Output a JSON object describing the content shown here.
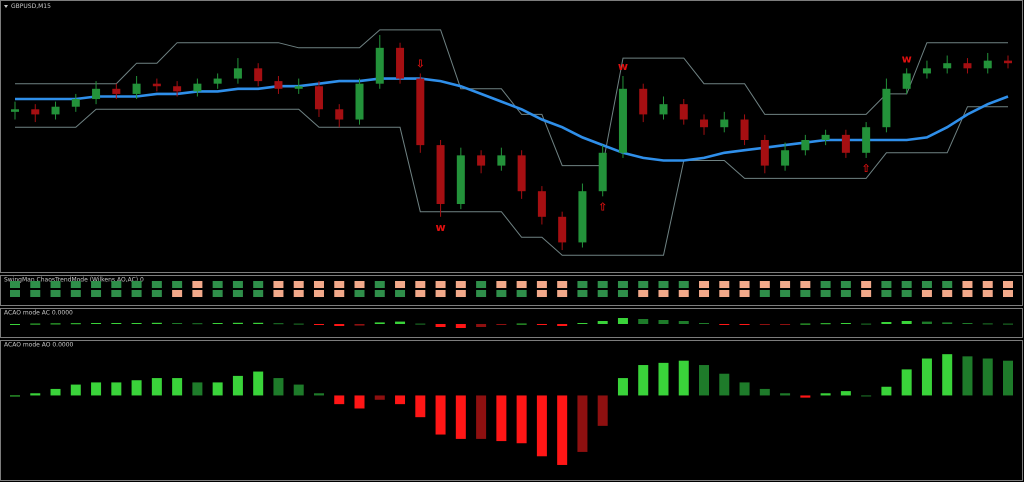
{
  "chart_data": [
    {
      "type": "candlestick",
      "title": "GBPUSD,M15",
      "open": [
        61,
        62,
        60,
        63,
        66,
        70,
        68,
        72,
        71,
        69,
        72,
        74,
        78,
        73,
        70,
        71,
        62,
        58,
        72,
        86,
        74,
        48,
        25,
        44,
        40,
        44,
        30,
        20,
        10,
        30,
        45,
        70,
        60,
        64,
        58,
        55,
        58,
        50,
        40,
        46,
        50,
        52,
        45,
        55,
        70,
        76,
        78,
        80,
        78,
        81
      ],
      "high": [
        65,
        64,
        65,
        68,
        73,
        72,
        75,
        74,
        73,
        74,
        76,
        82,
        80,
        75,
        74,
        73,
        64,
        74,
        91,
        88,
        76,
        50,
        47,
        46,
        47,
        46,
        32,
        22,
        33,
        48,
        75,
        72,
        67,
        66,
        60,
        61,
        60,
        52,
        49,
        52,
        54,
        54,
        57,
        74,
        78,
        81,
        83,
        82,
        84,
        83
      ],
      "low": [
        58,
        57,
        58,
        61,
        64,
        66,
        66,
        69,
        67,
        67,
        70,
        72,
        71,
        68,
        68,
        59,
        55,
        56,
        70,
        72,
        45,
        20,
        23,
        37,
        38,
        27,
        17,
        7,
        8,
        28,
        43,
        57,
        58,
        56,
        52,
        53,
        48,
        37,
        38,
        44,
        48,
        43,
        43,
        53,
        68,
        74,
        76,
        76,
        76,
        78
      ],
      "close": [
        62,
        60,
        63,
        66,
        70,
        68,
        72,
        71,
        69,
        72,
        74,
        78,
        73,
        70,
        71,
        62,
        58,
        72,
        86,
        74,
        48,
        25,
        44,
        40,
        44,
        30,
        20,
        10,
        30,
        45,
        70,
        60,
        64,
        58,
        55,
        58,
        50,
        40,
        46,
        50,
        52,
        45,
        55,
        70,
        76,
        78,
        80,
        78,
        81,
        80
      ],
      "up_color": "#23923a",
      "down_color": "#a50f12",
      "lines": [
        {
          "color": "#6f8283",
          "values": [
            72,
            72,
            72,
            72,
            72,
            72,
            80,
            80,
            88,
            88,
            88,
            88,
            88,
            88,
            86,
            86,
            86,
            86,
            93,
            93,
            93,
            93,
            70,
            70,
            70,
            60,
            60,
            40,
            40,
            40,
            82,
            82,
            82,
            82,
            72,
            72,
            72,
            60,
            60,
            60,
            60,
            60,
            60,
            68,
            68,
            88,
            88,
            88,
            88,
            88
          ]
        },
        {
          "color": "#6f8283",
          "values": [
            55,
            55,
            55,
            55,
            62,
            62,
            62,
            62,
            62,
            62,
            62,
            62,
            62,
            62,
            62,
            55,
            55,
            55,
            55,
            55,
            22,
            22,
            22,
            22,
            22,
            12,
            12,
            5,
            5,
            5,
            5,
            5,
            5,
            42,
            42,
            42,
            35,
            35,
            35,
            35,
            35,
            35,
            35,
            45,
            45,
            45,
            45,
            63,
            63,
            63
          ]
        },
        {
          "color": "#2f8fea",
          "values": [
            66,
            66,
            66,
            66,
            67,
            67,
            67,
            68,
            68,
            69,
            69,
            70,
            70,
            71,
            71,
            72,
            73,
            73,
            74,
            74,
            74,
            73,
            71,
            68,
            65,
            62,
            58,
            55,
            51,
            48,
            45,
            43,
            42,
            42,
            43,
            45,
            46,
            47,
            48,
            49,
            50,
            50,
            50,
            50,
            50,
            51,
            55,
            60,
            64,
            67
          ]
        }
      ],
      "annotations": [
        {
          "label": "⇩",
          "index": 20,
          "side": "above"
        },
        {
          "label": "w",
          "index": 21,
          "side": "below"
        },
        {
          "label": "⇧",
          "index": 29,
          "side": "below"
        },
        {
          "label": "w",
          "index": 30,
          "side": "above"
        },
        {
          "label": "⇧",
          "index": 42,
          "side": "below"
        },
        {
          "label": "w",
          "index": 44,
          "side": "above"
        }
      ],
      "annotation_color": "#e01010",
      "ylim": [
        0,
        100
      ]
    },
    {
      "type": "signal",
      "title": "SwingMan ChaosTrendMode (Wilkens AO,AC) 0",
      "up_color": "#2f8f4a",
      "down_color": "#f2a98a"
    },
    {
      "type": "histogram",
      "title": "ACAO mode AC 0.0000",
      "values": [
        0,
        0.02,
        0.03,
        0.04,
        0.05,
        0.05,
        0.05,
        0.06,
        0.05,
        0.04,
        0.05,
        0.06,
        0.06,
        0.04,
        0.02,
        -0.05,
        -0.1,
        -0.08,
        0.08,
        0.12,
        0.02,
        -0.15,
        -0.2,
        -0.15,
        -0.05,
        0.02,
        -0.05,
        -0.1,
        0.05,
        0.15,
        0.3,
        0.25,
        0.2,
        0.15,
        0.05,
        -0.02,
        -0.05,
        -0.04,
        -0.02,
        0.02,
        0.04,
        0.05,
        0.02,
        0.1,
        0.15,
        0.12,
        0.08,
        0.05,
        0.03,
        0.02
      ],
      "colors": [
        "#3ad33a",
        "#1e7b2a",
        "#ff1616",
        "#8e1010"
      ],
      "ylim": [
        -0.6,
        0.4
      ]
    },
    {
      "type": "histogram",
      "title": "ACAO mode AO 0.0000",
      "values": [
        0,
        0.05,
        0.15,
        0.25,
        0.3,
        0.3,
        0.35,
        0.4,
        0.4,
        0.3,
        0.3,
        0.45,
        0.55,
        0.4,
        0.25,
        0.05,
        -0.2,
        -0.3,
        -0.1,
        -0.2,
        -0.5,
        -0.9,
        -1.0,
        -1.0,
        -1.05,
        -1.1,
        -1.4,
        -1.6,
        -1.3,
        -0.7,
        0.4,
        0.7,
        0.75,
        0.8,
        0.7,
        0.5,
        0.3,
        0.15,
        0.05,
        -0.05,
        0.05,
        0.1,
        0.0,
        0.2,
        0.6,
        0.85,
        0.95,
        0.9,
        0.85,
        0.8
      ],
      "colors": [
        "#3ad33a",
        "#1e7b2a",
        "#ff1616",
        "#8e1010"
      ],
      "ylim": [
        -1.9,
        1.0
      ]
    }
  ]
}
